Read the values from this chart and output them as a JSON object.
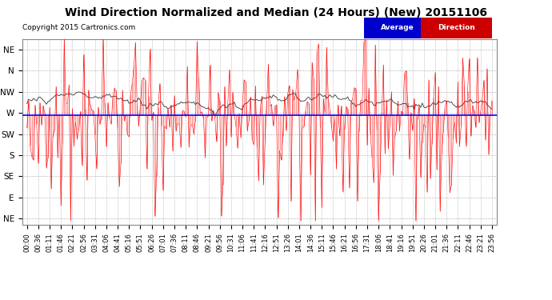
{
  "title": "Wind Direction Normalized and Median (24 Hours) (New) 20151106",
  "copyright": "Copyright 2015 Cartronics.com",
  "background_color": "#ffffff",
  "plot_bg_color": "#ffffff",
  "grid_color": "#bbbbbb",
  "ytick_labels": [
    "NE",
    "N",
    "NW",
    "W",
    "SW",
    "S",
    "SE",
    "E",
    "NE"
  ],
  "ytick_values": [
    8,
    7,
    6,
    5,
    4,
    3,
    2,
    1,
    0
  ],
  "avg_line_y": 4.9,
  "avg_line_color": "#0000ff",
  "red_line_color": "#ff0000",
  "dark_line_color": "#333333",
  "legend_avg_bg": "#0000cc",
  "legend_dir_bg": "#cc0000",
  "legend_text_color": "#ffffff",
  "num_points": 288,
  "xtick_labels": [
    "00:00",
    "00:36",
    "01:11",
    "01:46",
    "02:21",
    "02:56",
    "03:31",
    "04:06",
    "04:41",
    "05:16",
    "05:51",
    "06:26",
    "07:01",
    "07:36",
    "08:11",
    "08:46",
    "09:21",
    "09:56",
    "10:31",
    "11:06",
    "11:41",
    "12:16",
    "12:51",
    "13:26",
    "14:01",
    "14:36",
    "15:11",
    "15:46",
    "16:21",
    "16:56",
    "17:31",
    "18:06",
    "18:41",
    "19:16",
    "19:51",
    "20:26",
    "21:01",
    "21:36",
    "22:11",
    "22:46",
    "23:21",
    "23:56"
  ],
  "title_fontsize": 10,
  "copyright_fontsize": 6.5,
  "ylabel_fontsize": 7.5,
  "xlabel_fontsize": 6.0,
  "ymin": -0.3,
  "ymax": 8.5
}
